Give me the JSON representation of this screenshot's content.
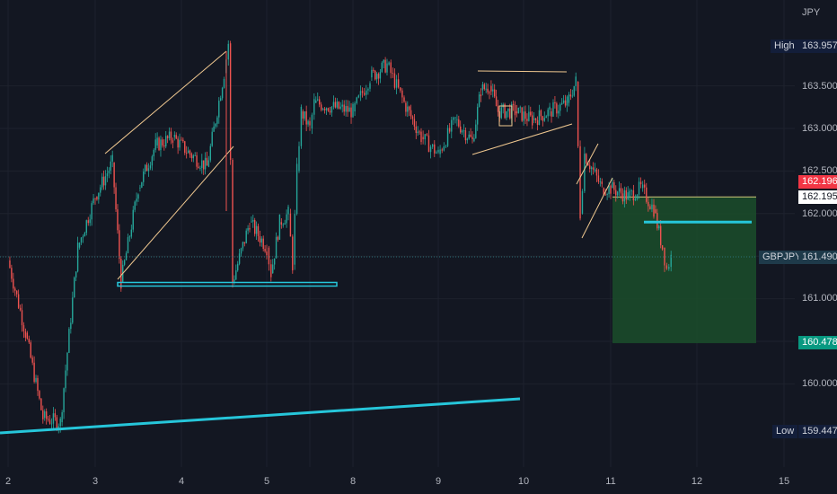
{
  "window": {
    "currency": "JPY"
  },
  "price_axis": {
    "ticks": [
      "163.500",
      "163.000",
      "162.500",
      "162.000",
      "161.000",
      "160.000"
    ]
  },
  "time_axis": {
    "ticks": [
      "2",
      "3",
      "4",
      "5",
      "8",
      "9",
      "10",
      "11",
      "12",
      "15"
    ]
  },
  "markers": {
    "high": {
      "label": "High",
      "value": "163.957"
    },
    "low": {
      "label": "Low",
      "value": "159.447"
    },
    "current": {
      "symbol": "GBPJPY",
      "value": "161.490"
    },
    "entry_red": {
      "value": "162.196"
    },
    "entry_white": {
      "value": "162.195"
    },
    "target": {
      "value": "160.478"
    }
  },
  "colors": {
    "background": "#131722",
    "candle_up": "#26a69a",
    "candle_down": "#ef5350",
    "trendline_cyan": "#26c6da",
    "pattern_lines": "#f0c890",
    "target_zone": "#1b4d2a",
    "high_tag_bg": "#131e3a",
    "red_tag": "#f23645",
    "green_tag": "#089981"
  },
  "chart_data": {
    "type": "line",
    "title": "",
    "xlabel": "",
    "ylabel": "",
    "symbol": "GBPJPY",
    "ylim": [
      159.3,
      164.3
    ],
    "series": [
      {
        "values": [
          [
            2.0,
            161.45
          ],
          [
            2.2,
            160.6
          ],
          [
            2.4,
            159.6
          ],
          [
            2.6,
            159.55
          ],
          [
            2.8,
            161.6
          ],
          [
            3.0,
            162.2
          ],
          [
            3.2,
            162.6
          ],
          [
            3.3,
            161.2
          ],
          [
            3.5,
            162.3
          ],
          [
            3.7,
            162.8
          ],
          [
            3.9,
            162.9
          ],
          [
            4.1,
            162.7
          ],
          [
            4.3,
            162.55
          ],
          [
            4.5,
            163.65
          ],
          [
            4.55,
            164.0
          ],
          [
            4.6,
            161.2
          ],
          [
            4.8,
            161.9
          ],
          [
            5.0,
            161.6
          ],
          [
            5.1,
            161.3
          ],
          [
            5.3,
            161.9
          ],
          [
            5.5,
            162.0
          ],
          [
            5.6,
            161.4
          ],
          [
            5.7,
            162.5
          ],
          [
            5.8,
            163.2
          ],
          [
            6.0,
            163.0
          ],
          [
            6.2,
            163.3
          ],
          [
            8.0,
            163.2
          ],
          [
            8.2,
            163.6
          ],
          [
            8.4,
            163.75
          ],
          [
            8.6,
            163.3
          ],
          [
            8.8,
            162.9
          ],
          [
            9.0,
            162.7
          ],
          [
            9.2,
            163.1
          ],
          [
            9.4,
            162.85
          ],
          [
            9.5,
            163.45
          ],
          [
            9.6,
            163.5
          ],
          [
            9.7,
            163.2
          ],
          [
            9.9,
            163.2
          ],
          [
            10.1,
            163.1
          ],
          [
            10.3,
            163.2
          ],
          [
            10.5,
            163.3
          ],
          [
            10.6,
            163.55
          ],
          [
            10.65,
            162.0
          ],
          [
            10.7,
            162.7
          ],
          [
            10.8,
            162.5
          ],
          [
            10.9,
            162.3
          ],
          [
            11.0,
            162.3
          ],
          [
            11.2,
            162.2
          ],
          [
            11.35,
            162.3
          ],
          [
            11.5,
            162.05
          ],
          [
            11.6,
            161.6
          ],
          [
            11.65,
            161.35
          ],
          [
            11.7,
            161.49
          ]
        ]
      }
    ],
    "annotations": {
      "support_line_level": 161.17,
      "resistance_line_level": 161.9,
      "trendline_start": [
        2.0,
        159.45
      ],
      "trendline_end": [
        10.0,
        159.85
      ],
      "target_zone": [
        160.478,
        162.196
      ]
    }
  }
}
